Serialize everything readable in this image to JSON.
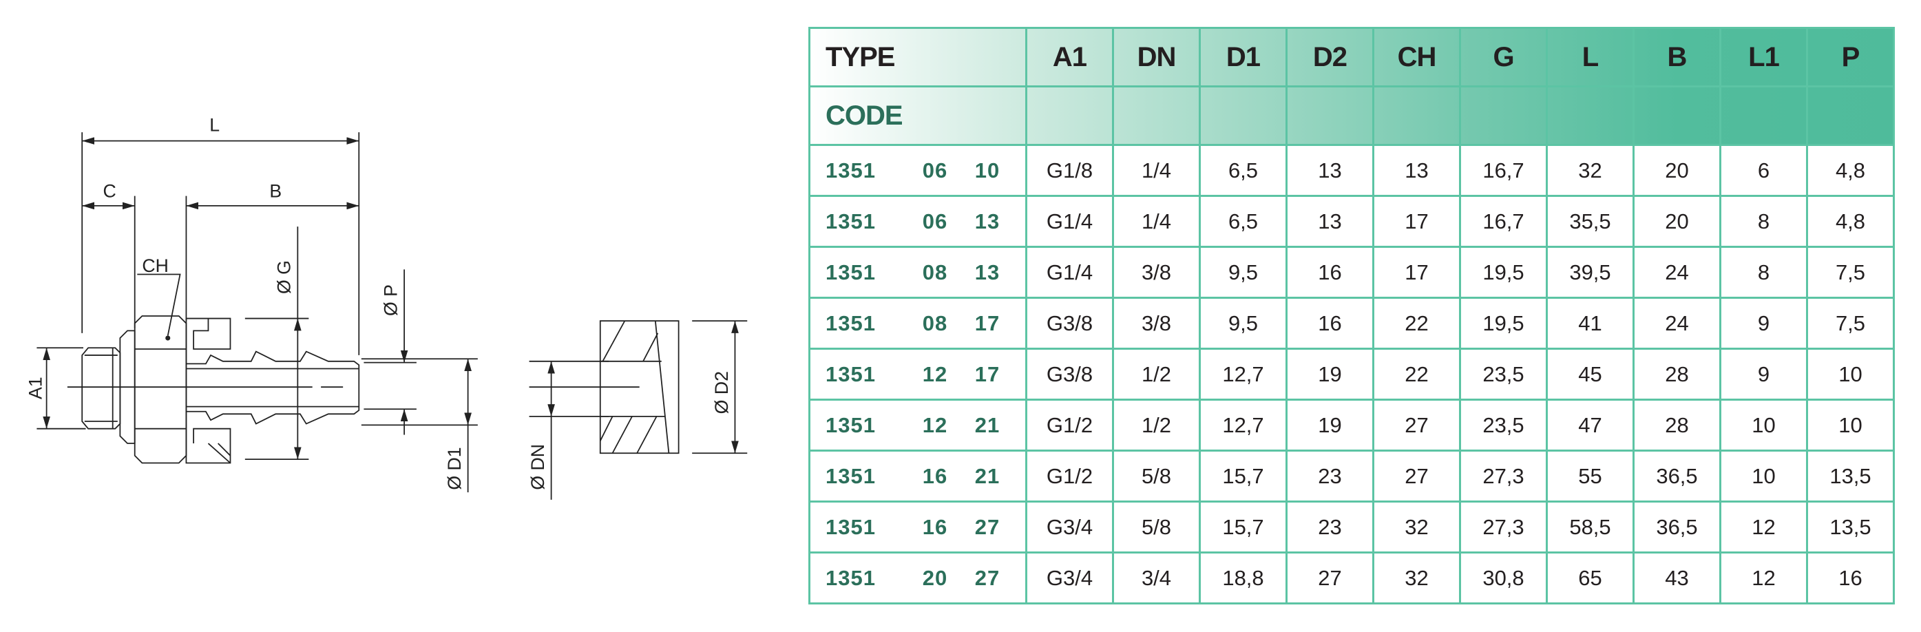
{
  "drawing": {
    "labels": {
      "L": "L",
      "C": "C",
      "B": "B",
      "CH": "CH",
      "A1": "A1",
      "G": "Ø G",
      "P": "Ø P",
      "D1": "Ø D1",
      "DN": "Ø DN",
      "D2": "Ø D2"
    }
  },
  "table": {
    "header": [
      "TYPE",
      "A1",
      "DN",
      "D1",
      "D2",
      "CH",
      "G",
      "L",
      "B",
      "L1",
      "P"
    ],
    "code_label": "CODE",
    "rows": [
      {
        "code": [
          "1351",
          "06",
          "10"
        ],
        "values": [
          "G1/8",
          "1/4",
          "6,5",
          "13",
          "13",
          "16,7",
          "32",
          "20",
          "6",
          "4,8"
        ]
      },
      {
        "code": [
          "1351",
          "06",
          "13"
        ],
        "values": [
          "G1/4",
          "1/4",
          "6,5",
          "13",
          "17",
          "16,7",
          "35,5",
          "20",
          "8",
          "4,8"
        ]
      },
      {
        "code": [
          "1351",
          "08",
          "13"
        ],
        "values": [
          "G1/4",
          "3/8",
          "9,5",
          "16",
          "17",
          "19,5",
          "39,5",
          "24",
          "8",
          "7,5"
        ]
      },
      {
        "code": [
          "1351",
          "08",
          "17"
        ],
        "values": [
          "G3/8",
          "3/8",
          "9,5",
          "16",
          "22",
          "19,5",
          "41",
          "24",
          "9",
          "7,5"
        ]
      },
      {
        "code": [
          "1351",
          "12",
          "17"
        ],
        "values": [
          "G3/8",
          "1/2",
          "12,7",
          "19",
          "22",
          "23,5",
          "45",
          "28",
          "9",
          "10"
        ]
      },
      {
        "code": [
          "1351",
          "12",
          "21"
        ],
        "values": [
          "G1/2",
          "1/2",
          "12,7",
          "19",
          "27",
          "23,5",
          "47",
          "28",
          "10",
          "10"
        ]
      },
      {
        "code": [
          "1351",
          "16",
          "21"
        ],
        "values": [
          "G1/2",
          "5/8",
          "15,7",
          "23",
          "27",
          "27,3",
          "55",
          "36,5",
          "10",
          "13,5"
        ]
      },
      {
        "code": [
          "1351",
          "16",
          "27"
        ],
        "values": [
          "G3/4",
          "5/8",
          "15,7",
          "23",
          "32",
          "27,3",
          "58,5",
          "36,5",
          "12",
          "13,5"
        ]
      },
      {
        "code": [
          "1351",
          "20",
          "27"
        ],
        "values": [
          "G3/4",
          "3/4",
          "18,8",
          "27",
          "32",
          "30,8",
          "65",
          "43",
          "12",
          "16"
        ]
      }
    ]
  },
  "colors": {
    "border": "#5cc4a4",
    "header_gradient_end": "#4fbb9b",
    "code_text": "#2b6f5a",
    "text": "#231f20"
  }
}
